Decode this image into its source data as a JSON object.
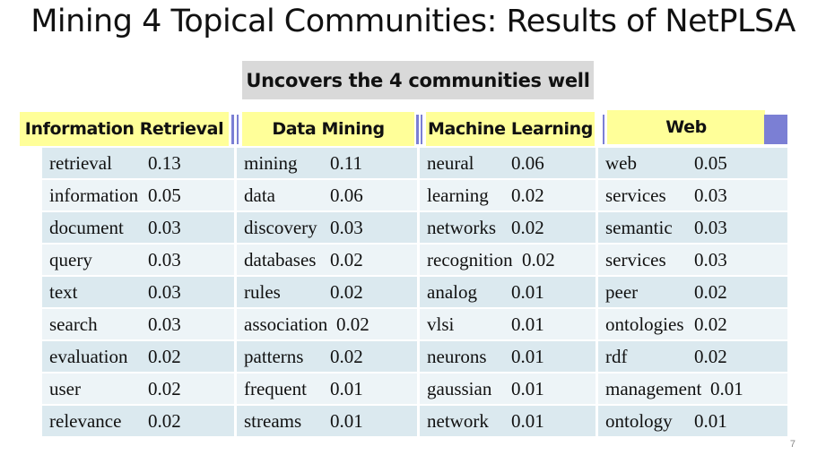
{
  "slide": {
    "title": "Mining 4 Topical Communities: Results of NetPLSA",
    "subtitle": "Uncovers the 4 communities well",
    "page_number": "7"
  },
  "columns": [
    {
      "header": "Information Retrieval",
      "rows": [
        {
          "term": "retrieval",
          "prob": "0.13"
        },
        {
          "term": "information",
          "prob": "0.05"
        },
        {
          "term": "document",
          "prob": "0.03"
        },
        {
          "term": "query",
          "prob": "0.03"
        },
        {
          "term": "text",
          "prob": "0.03"
        },
        {
          "term": "search",
          "prob": "0.03"
        },
        {
          "term": "evaluation",
          "prob": "0.02"
        },
        {
          "term": "user",
          "prob": "0.02"
        },
        {
          "term": "relevance",
          "prob": "0.02"
        }
      ]
    },
    {
      "header": "Data Mining",
      "rows": [
        {
          "term": "mining",
          "prob": "0.11"
        },
        {
          "term": "data",
          "prob": "0.06"
        },
        {
          "term": "discovery",
          "prob": "0.03"
        },
        {
          "term": "databases",
          "prob": "0.02"
        },
        {
          "term": "rules",
          "prob": "0.02"
        },
        {
          "term": "association",
          "prob": "0.02"
        },
        {
          "term": "patterns",
          "prob": "0.02"
        },
        {
          "term": "frequent",
          "prob": "0.01"
        },
        {
          "term": "streams",
          "prob": "0.01"
        }
      ]
    },
    {
      "header": "Machine Learning",
      "rows": [
        {
          "term": "neural",
          "prob": "0.06"
        },
        {
          "term": "learning",
          "prob": "0.02"
        },
        {
          "term": "networks",
          "prob": "0.02"
        },
        {
          "term": "recognition",
          "prob": "0.02"
        },
        {
          "term": "analog",
          "prob": "0.01"
        },
        {
          "term": "vlsi",
          "prob": "0.01"
        },
        {
          "term": "neurons",
          "prob": "0.01"
        },
        {
          "term": "gaussian",
          "prob": "0.01"
        },
        {
          "term": "network",
          "prob": "0.01"
        }
      ]
    },
    {
      "header": "Web",
      "rows": [
        {
          "term": "web",
          "prob": "0.05"
        },
        {
          "term": "services",
          "prob": "0.03"
        },
        {
          "term": "semantic",
          "prob": "0.03"
        },
        {
          "term": "services",
          "prob": "0.03"
        },
        {
          "term": "peer",
          "prob": "0.02"
        },
        {
          "term": "ontologies",
          "prob": "0.02"
        },
        {
          "term": "rdf",
          "prob": "0.02"
        },
        {
          "term": "management",
          "prob": "0.01"
        },
        {
          "term": "ontology",
          "prob": "0.01"
        }
      ]
    }
  ],
  "colors": {
    "header_bg": "#ffff99",
    "divider": "#7b7fd4",
    "row_odd": "#dbe9ef",
    "row_even": "#edf4f7",
    "subtitle_bg": "#d9d9d9"
  }
}
